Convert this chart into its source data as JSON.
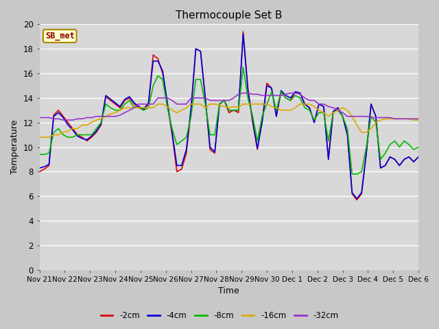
{
  "title": "Thermocouple Set B",
  "xlabel": "Time",
  "ylabel": "Temperature",
  "ylim": [
    0,
    20
  ],
  "yticks": [
    0,
    2,
    4,
    6,
    8,
    10,
    12,
    14,
    16,
    18,
    20
  ],
  "fig_bg": "#c8c8c8",
  "plot_bg": "#d8d8d8",
  "series_colors": {
    "-2cm": "#dd0000",
    "-4cm": "#0000dd",
    "-8cm": "#00bb00",
    "-16cm": "#ddaa00",
    "-32cm": "#9933cc"
  },
  "legend_label": "SB_met",
  "legend_bg": "#ffffcc",
  "legend_border": "#aa8800",
  "x_labels": [
    "Nov 21",
    "Nov 22",
    "Nov 23",
    "Nov 24",
    "Nov 25",
    "Nov 26",
    "Nov 27",
    "Nov 28",
    "Nov 29",
    "Nov 30",
    "Dec 1",
    "Dec 2",
    "Dec 3",
    "Dec 4",
    "Dec 5",
    "Dec 6"
  ],
  "series": {
    "-2cm": [
      8.0,
      8.2,
      8.5,
      12.6,
      13.0,
      12.5,
      12.0,
      11.5,
      11.0,
      10.8,
      10.5,
      10.8,
      11.2,
      11.8,
      14.1,
      13.8,
      13.5,
      13.2,
      13.8,
      14.0,
      13.5,
      13.2,
      13.0,
      13.5,
      17.5,
      17.2,
      16.0,
      13.5,
      11.0,
      8.0,
      8.2,
      9.5,
      13.0,
      18.0,
      17.8,
      14.0,
      9.8,
      9.5,
      13.5,
      13.8,
      12.8,
      13.0,
      12.8,
      19.4,
      14.8,
      12.0,
      9.8,
      12.1,
      15.2,
      14.8,
      12.5,
      14.5,
      14.0,
      13.8,
      14.5,
      14.4,
      13.5,
      13.2,
      12.0,
      13.5,
      13.3,
      9.0,
      12.8,
      13.2,
      12.5,
      11.0,
      6.2,
      5.7,
      6.2,
      9.5,
      13.5,
      12.5,
      8.3,
      8.5,
      9.2,
      9.0,
      8.5,
      9.0,
      9.2,
      8.8,
      9.2
    ],
    "-4cm": [
      8.3,
      8.4,
      8.6,
      12.5,
      12.8,
      12.4,
      11.8,
      11.4,
      10.9,
      10.7,
      10.6,
      10.9,
      11.3,
      11.9,
      14.2,
      13.9,
      13.6,
      13.3,
      13.9,
      14.1,
      13.6,
      13.3,
      13.1,
      13.6,
      17.0,
      17.0,
      16.2,
      13.6,
      11.2,
      8.5,
      8.5,
      9.8,
      13.2,
      18.0,
      17.8,
      14.0,
      10.0,
      9.6,
      13.5,
      13.8,
      13.0,
      13.0,
      13.0,
      19.2,
      14.6,
      12.2,
      9.9,
      12.0,
      15.0,
      14.8,
      12.5,
      14.6,
      14.2,
      14.0,
      14.5,
      14.4,
      13.5,
      13.2,
      12.0,
      13.5,
      13.3,
      9.0,
      12.9,
      13.2,
      12.5,
      11.0,
      6.3,
      5.8,
      6.3,
      9.5,
      13.5,
      12.5,
      8.3,
      8.5,
      9.2,
      9.0,
      8.5,
      9.0,
      9.2,
      8.8,
      9.2
    ],
    "-8cm": [
      9.4,
      9.4,
      9.5,
      11.2,
      11.5,
      11.0,
      10.8,
      10.8,
      11.0,
      11.0,
      11.0,
      11.0,
      11.5,
      12.0,
      13.5,
      13.2,
      13.0,
      13.0,
      13.5,
      13.8,
      13.2,
      13.2,
      13.0,
      13.2,
      15.0,
      15.8,
      15.5,
      13.2,
      11.5,
      10.2,
      10.5,
      10.8,
      12.5,
      15.5,
      15.5,
      13.5,
      11.0,
      11.0,
      13.5,
      13.8,
      13.0,
      13.0,
      13.0,
      16.5,
      14.0,
      12.5,
      10.5,
      12.5,
      13.5,
      14.5,
      13.0,
      14.5,
      14.0,
      13.8,
      14.2,
      14.0,
      13.2,
      13.0,
      12.2,
      12.8,
      12.8,
      10.5,
      12.8,
      13.0,
      12.5,
      11.5,
      7.8,
      7.8,
      8.0,
      10.0,
      12.5,
      12.0,
      9.0,
      9.5,
      10.2,
      10.5,
      10.0,
      10.5,
      10.2,
      9.8,
      10.0
    ],
    "-16cm": [
      10.8,
      10.8,
      10.8,
      11.0,
      11.0,
      11.2,
      11.3,
      11.5,
      11.5,
      11.8,
      11.8,
      12.0,
      12.2,
      12.3,
      12.5,
      12.7,
      12.8,
      13.0,
      13.2,
      13.2,
      13.2,
      13.2,
      13.2,
      13.2,
      13.2,
      13.5,
      13.5,
      13.3,
      13.0,
      12.8,
      13.0,
      13.2,
      13.5,
      13.5,
      13.5,
      13.2,
      13.5,
      13.5,
      13.4,
      13.3,
      13.2,
      13.3,
      13.2,
      13.5,
      13.5,
      13.5,
      13.5,
      13.5,
      13.5,
      13.3,
      13.2,
      13.0,
      13.0,
      13.0,
      13.2,
      13.5,
      13.5,
      13.5,
      13.3,
      13.0,
      12.8,
      12.5,
      12.8,
      13.0,
      13.2,
      13.0,
      12.5,
      11.8,
      11.2,
      11.2,
      11.5,
      12.0,
      12.2,
      12.3,
      12.3,
      12.3,
      12.3,
      12.3,
      12.3,
      12.2,
      12.2
    ],
    "-32cm": [
      12.4,
      12.4,
      12.4,
      12.3,
      12.3,
      12.2,
      12.2,
      12.2,
      12.3,
      12.3,
      12.4,
      12.4,
      12.5,
      12.5,
      12.5,
      12.5,
      12.5,
      12.6,
      12.8,
      13.0,
      13.2,
      13.5,
      13.5,
      13.5,
      13.5,
      14.0,
      14.0,
      14.0,
      13.8,
      13.5,
      13.5,
      13.5,
      14.0,
      14.0,
      14.0,
      14.0,
      13.8,
      13.8,
      13.8,
      13.8,
      13.8,
      14.0,
      14.3,
      14.4,
      14.4,
      14.3,
      14.3,
      14.2,
      14.2,
      14.2,
      14.2,
      14.2,
      14.3,
      14.4,
      14.4,
      14.3,
      14.0,
      13.8,
      13.8,
      13.5,
      13.5,
      13.3,
      13.2,
      13.0,
      12.8,
      12.5,
      12.5,
      12.5,
      12.5,
      12.5,
      12.4,
      12.4,
      12.4,
      12.4,
      12.4,
      12.3,
      12.3,
      12.3,
      12.3,
      12.3,
      12.3
    ]
  },
  "line_width": 1.2
}
